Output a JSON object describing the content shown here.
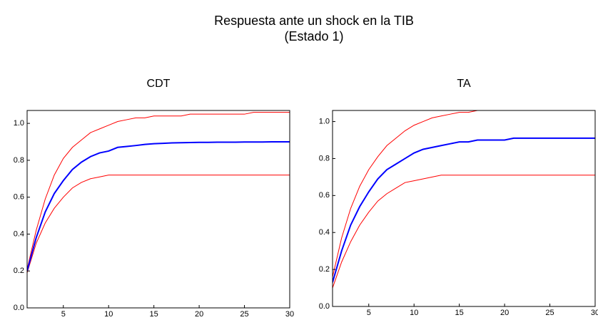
{
  "title": "Respuesta ante un shock en la TIB",
  "subtitle": "(Estado 1)",
  "chart_data": [
    {
      "type": "line",
      "title": "CDT",
      "x": [
        1,
        2,
        3,
        4,
        5,
        6,
        7,
        8,
        9,
        10,
        11,
        12,
        13,
        14,
        15,
        16,
        17,
        18,
        19,
        20,
        21,
        22,
        23,
        24,
        25,
        26,
        27,
        28,
        29,
        30
      ],
      "series": [
        {
          "color": "#ff0000",
          "line_width": 1,
          "values": [
            0.21,
            0.42,
            0.59,
            0.72,
            0.81,
            0.87,
            0.91,
            0.95,
            0.97,
            0.99,
            1.01,
            1.02,
            1.03,
            1.03,
            1.04,
            1.04,
            1.04,
            1.04,
            1.05,
            1.05,
            1.05,
            1.05,
            1.05,
            1.05,
            1.05,
            1.06,
            1.06,
            1.06,
            1.06,
            1.06
          ]
        },
        {
          "color": "#ff0000",
          "line_width": 1,
          "values": [
            0.19,
            0.35,
            0.46,
            0.54,
            0.6,
            0.65,
            0.68,
            0.7,
            0.71,
            0.72,
            0.72,
            0.72,
            0.72,
            0.72,
            0.72,
            0.72,
            0.72,
            0.72,
            0.72,
            0.72,
            0.72,
            0.72,
            0.72,
            0.72,
            0.72,
            0.72,
            0.72,
            0.72,
            0.72,
            0.72
          ]
        },
        {
          "color": "#0000ff",
          "line_width": 2,
          "values": [
            0.2,
            0.38,
            0.52,
            0.62,
            0.69,
            0.75,
            0.79,
            0.82,
            0.84,
            0.85,
            0.87,
            0.875,
            0.88,
            0.886,
            0.89,
            0.892,
            0.894,
            0.895,
            0.896,
            0.897,
            0.897,
            0.898,
            0.898,
            0.898,
            0.899,
            0.899,
            0.899,
            0.9,
            0.9,
            0.9
          ]
        }
      ],
      "xlim": [
        1,
        30
      ],
      "ylim": [
        0,
        1.07
      ],
      "xticks": [
        5,
        10,
        15,
        20,
        25,
        30
      ],
      "yticks": [
        {
          "value": 0,
          "label": "0.0"
        },
        {
          "value": 0.2,
          "label": "0.2"
        },
        {
          "value": 0.4,
          "label": "0.4"
        },
        {
          "value": 0.6,
          "label": "0.6"
        },
        {
          "value": 0.8,
          "label": "0.8"
        },
        {
          "value": 1,
          "label": "1.0"
        }
      ]
    },
    {
      "type": "line",
      "title": "TA",
      "x": [
        1,
        2,
        3,
        4,
        5,
        6,
        7,
        8,
        9,
        10,
        11,
        12,
        13,
        14,
        15,
        16,
        17,
        18,
        19,
        20,
        21,
        22,
        23,
        24,
        25,
        26,
        27,
        28,
        29,
        30
      ],
      "series": [
        {
          "color": "#ff0000",
          "line_width": 1,
          "values": [
            0.16,
            0.37,
            0.53,
            0.65,
            0.74,
            0.81,
            0.87,
            0.91,
            0.95,
            0.98,
            1.0,
            1.02,
            1.03,
            1.04,
            1.05,
            1.05,
            1.06,
            1.06,
            1.06,
            1.06,
            1.06,
            1.06,
            1.06,
            1.06,
            1.06,
            1.06,
            1.06,
            1.06,
            1.06,
            1.06
          ]
        },
        {
          "color": "#ff0000",
          "line_width": 1,
          "values": [
            0.1,
            0.24,
            0.35,
            0.44,
            0.51,
            0.57,
            0.61,
            0.64,
            0.67,
            0.68,
            0.69,
            0.7,
            0.71,
            0.71,
            0.71,
            0.71,
            0.71,
            0.71,
            0.71,
            0.71,
            0.71,
            0.71,
            0.71,
            0.71,
            0.71,
            0.71,
            0.71,
            0.71,
            0.71,
            0.71
          ]
        },
        {
          "color": "#0000ff",
          "line_width": 2,
          "values": [
            0.13,
            0.3,
            0.44,
            0.54,
            0.62,
            0.69,
            0.74,
            0.77,
            0.8,
            0.83,
            0.85,
            0.86,
            0.87,
            0.88,
            0.89,
            0.89,
            0.9,
            0.9,
            0.9,
            0.9,
            0.91,
            0.91,
            0.91,
            0.91,
            0.91,
            0.91,
            0.91,
            0.91,
            0.91,
            0.91
          ]
        }
      ],
      "xlim": [
        1,
        30
      ],
      "ylim": [
        0,
        1.06
      ],
      "xticks": [
        5,
        10,
        15,
        20,
        25,
        30
      ],
      "yticks": [
        {
          "value": 0,
          "label": "0.0"
        },
        {
          "value": 0.2,
          "label": "0.2"
        },
        {
          "value": 0.4,
          "label": "0.4"
        },
        {
          "value": 0.6,
          "label": "0.6"
        },
        {
          "value": 0.8,
          "label": "0.8"
        },
        {
          "value": 1,
          "label": "1.0"
        }
      ]
    }
  ]
}
